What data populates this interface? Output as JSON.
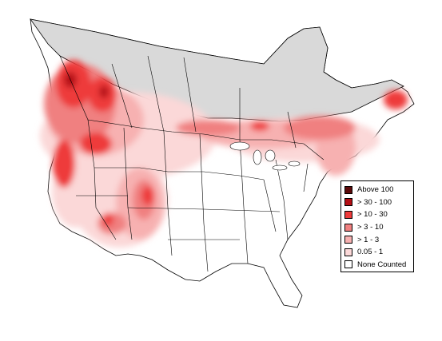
{
  "map": {
    "colors": {
      "outside_range": "#d9d9d9",
      "land": "#ffffff",
      "border": "#000000"
    }
  },
  "legend": {
    "items": [
      {
        "label": "Above 100",
        "color": "#5c0a0a"
      },
      {
        "label": "> 30 - 100",
        "color": "#b40f15"
      },
      {
        "label": "> 10 - 30",
        "color": "#ee3b3b"
      },
      {
        "label": "> 3 - 10",
        "color": "#f08080"
      },
      {
        "label": "> 1 - 3",
        "color": "#f7b1b1"
      },
      {
        "label": "0.05 - 1",
        "color": "#fbd8d8"
      },
      {
        "label": "None Counted",
        "color": "#ffffff"
      }
    ]
  }
}
